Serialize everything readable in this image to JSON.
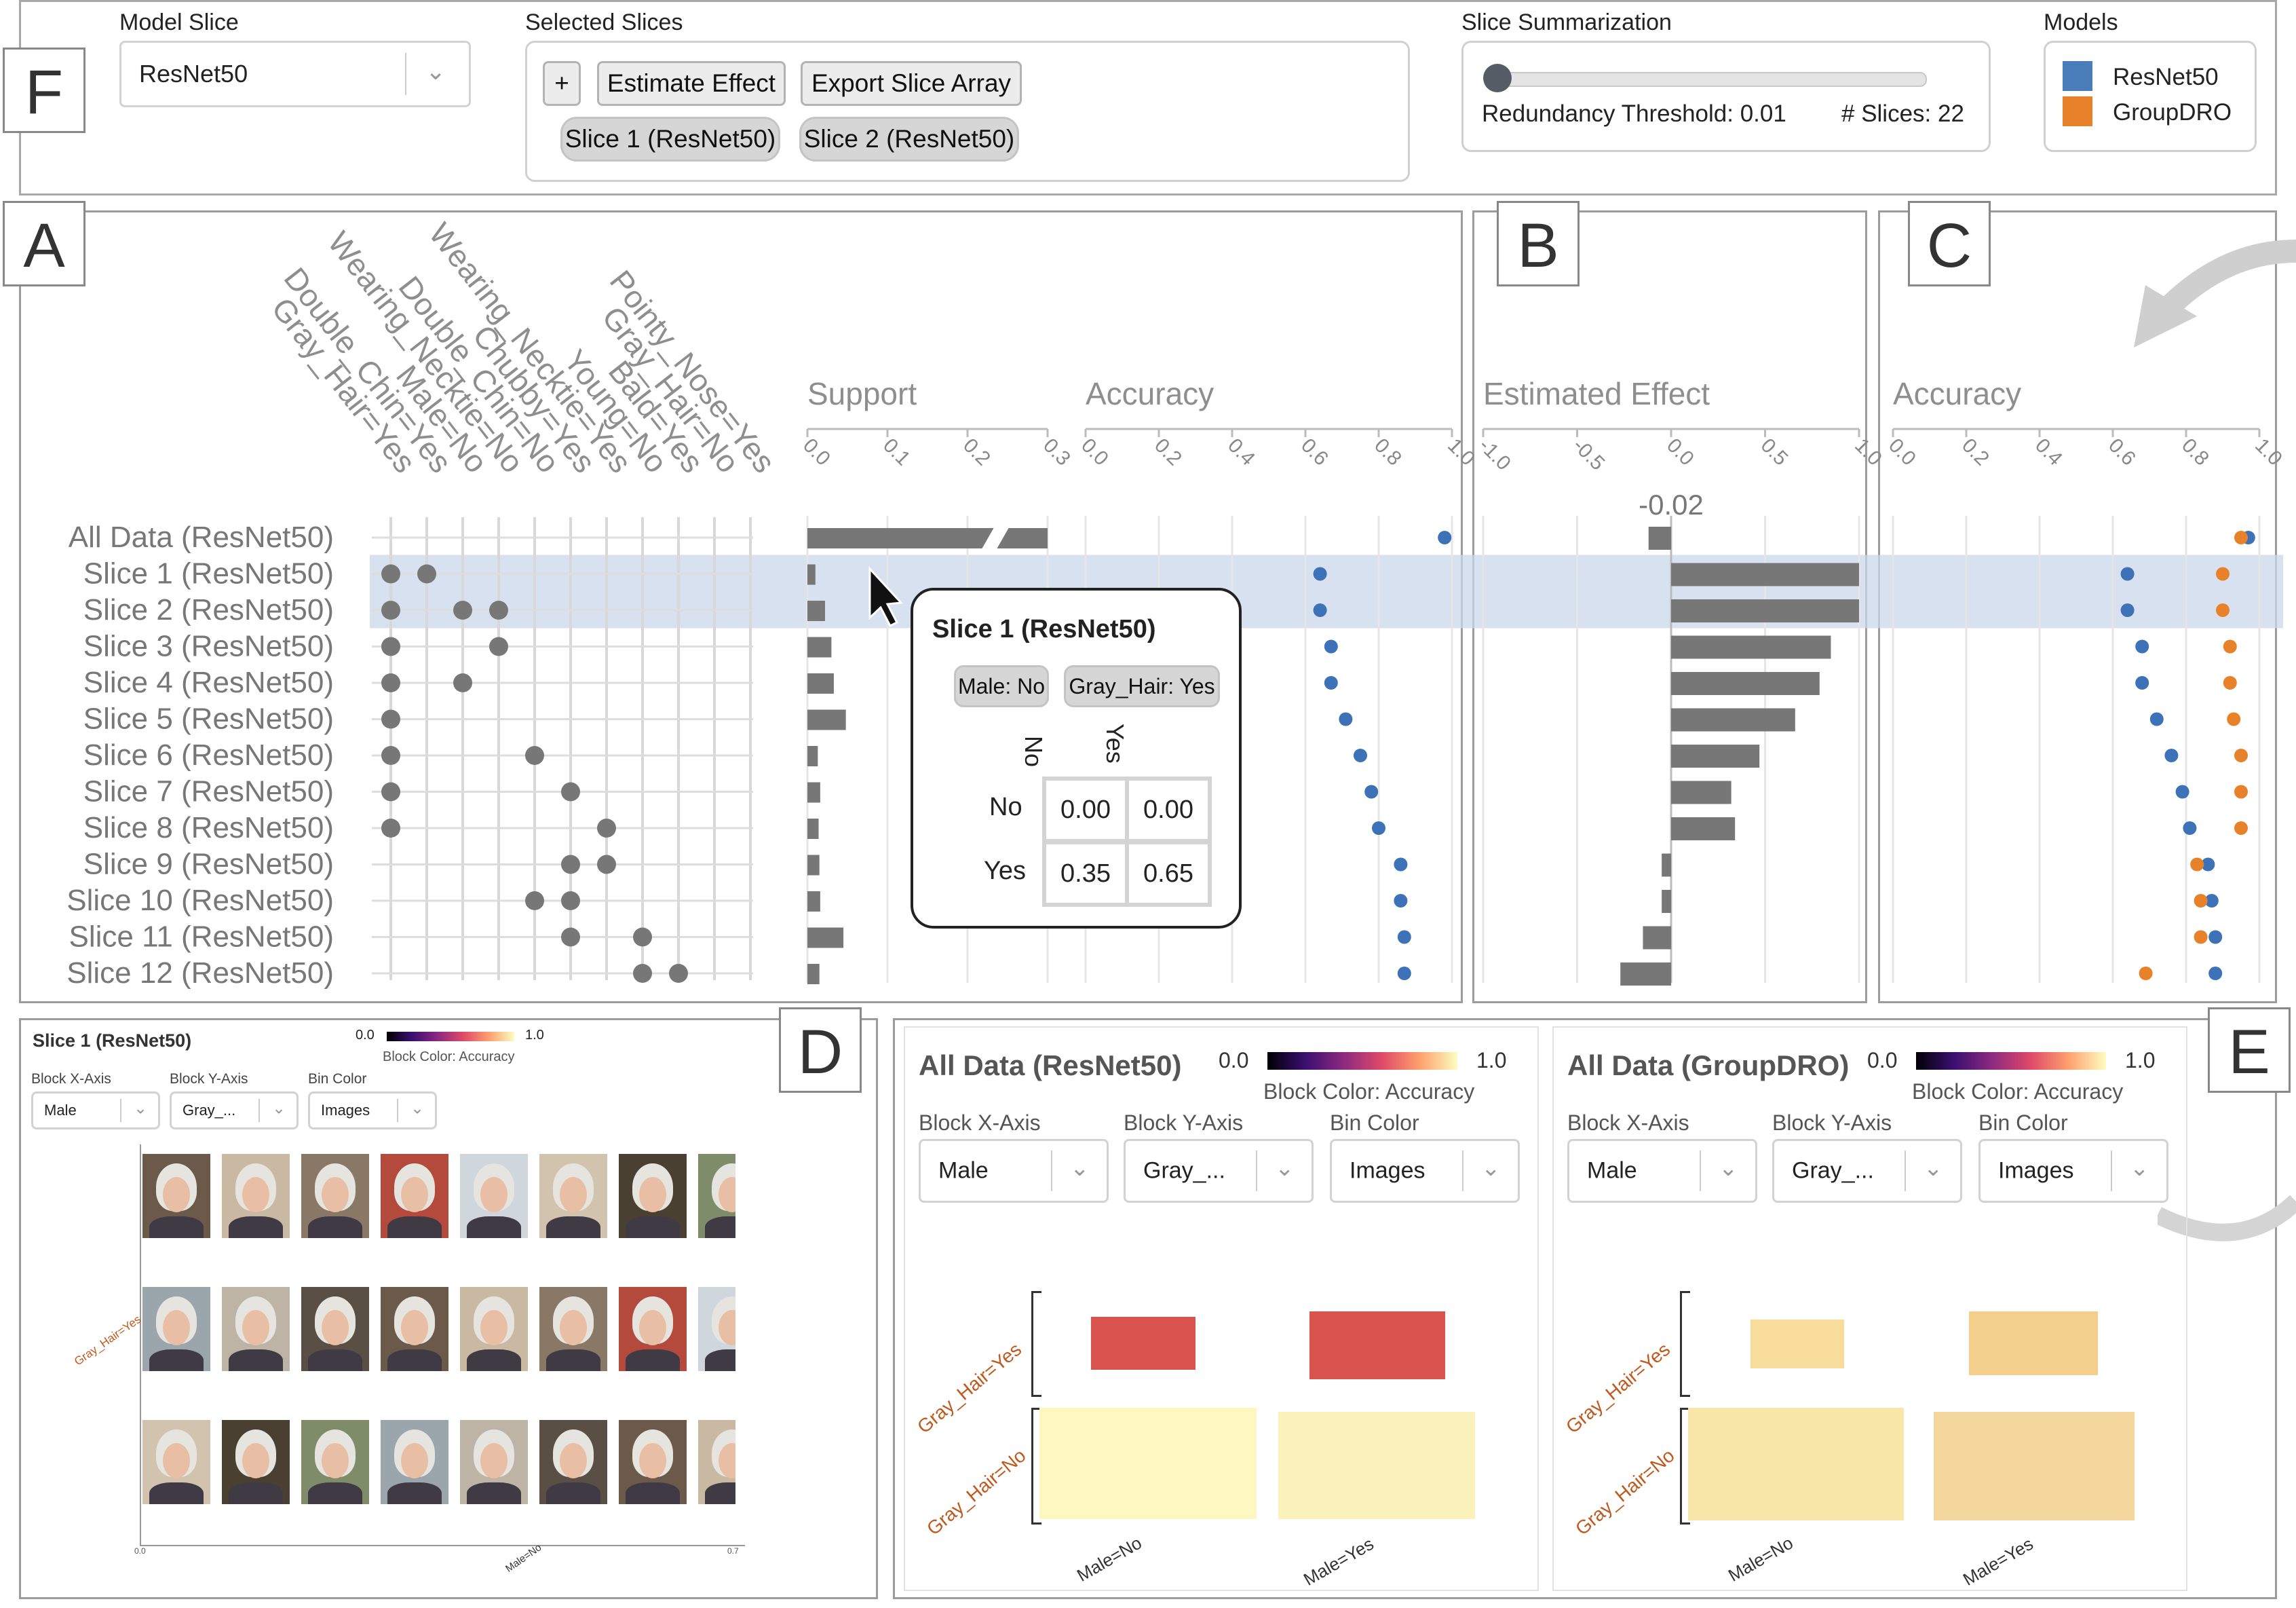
{
  "panel_letters": [
    "F",
    "A",
    "B",
    "C",
    "D",
    "E"
  ],
  "top": {
    "model_slice": {
      "label": "Model Slice",
      "value": "ResNet50"
    },
    "selected_slices": {
      "label": "Selected Slices",
      "add_label": "+",
      "estimate_label": "Estimate Effect",
      "export_label": "Export Slice Array",
      "chips": [
        "Slice 1 (ResNet50)",
        "Slice 2 (ResNet50)"
      ]
    },
    "summarization": {
      "label": "Slice Summarization",
      "threshold_text": "Redundancy Threshold: 0.01",
      "slices_text": "# Slices: 22",
      "threshold": 0.01
    },
    "models": {
      "label": "Models",
      "items": [
        {
          "name": "ResNet50",
          "color": "#4a7ebb"
        },
        {
          "name": "GroupDRO",
          "color": "#e8822a"
        }
      ]
    }
  },
  "matrix": {
    "features": [
      "Gray_Hair=Yes",
      "Double_Chin=Yes",
      "Male=No",
      "Wearing_Necktie=No",
      "Double_Chin=No",
      "Chubby=Yes",
      "Wearing_Necktie=Yes",
      "Young=No",
      "Bald=Yes",
      "Gray_Hair=No",
      "Pointy_Nose=Yes"
    ],
    "rows": [
      {
        "label": "All Data (ResNet50)",
        "dots": []
      },
      {
        "label": "Slice 1 (ResNet50)",
        "dots": [
          0,
          1
        ]
      },
      {
        "label": "Slice 2 (ResNet50)",
        "dots": [
          0,
          2,
          3
        ]
      },
      {
        "label": "Slice 3 (ResNet50)",
        "dots": [
          0,
          3
        ]
      },
      {
        "label": "Slice 4 (ResNet50)",
        "dots": [
          0,
          2
        ]
      },
      {
        "label": "Slice 5 (ResNet50)",
        "dots": [
          0
        ]
      },
      {
        "label": "Slice 6 (ResNet50)",
        "dots": [
          0,
          4
        ]
      },
      {
        "label": "Slice 7 (ResNet50)",
        "dots": [
          0,
          5
        ]
      },
      {
        "label": "Slice 8 (ResNet50)",
        "dots": [
          0,
          6
        ]
      },
      {
        "label": "Slice 9 (ResNet50)",
        "dots": [
          5,
          6
        ]
      },
      {
        "label": "Slice 10 (ResNet50)",
        "dots": [
          4,
          5
        ]
      },
      {
        "label": "Slice 11 (ResNet50)",
        "dots": [
          5,
          7
        ]
      },
      {
        "label": "Slice 12 (ResNet50)",
        "dots": [
          7,
          8
        ]
      }
    ]
  },
  "support": {
    "title": "Support",
    "ticks": [
      "0.0",
      "0.1",
      "0.2",
      "0.3"
    ],
    "max": 0.3,
    "values": [
      0.3,
      0.01,
      0.022,
      0.03,
      0.033,
      0.048,
      0.013,
      0.016,
      0.014,
      0.015,
      0.016,
      0.045,
      0.015
    ]
  },
  "accuracy_a": {
    "title": "Accuracy",
    "ticks": [
      "0.0",
      "0.2",
      "0.4",
      "0.6",
      "0.8",
      "1.0"
    ],
    "values": [
      0.98,
      0.64,
      0.64,
      0.67,
      0.67,
      0.71,
      0.75,
      0.78,
      0.8,
      0.86,
      0.86,
      0.87,
      0.87
    ]
  },
  "effect": {
    "title": "Estimated Effect",
    "ticks": [
      "-1.0",
      "-0.5",
      "0.0",
      "0.5",
      "1.0"
    ],
    "label": "-0.02",
    "values": [
      -0.12,
      1.0,
      1.0,
      0.85,
      0.79,
      0.66,
      0.47,
      0.32,
      0.34,
      -0.05,
      -0.05,
      -0.15,
      -0.27
    ]
  },
  "accuracy_c": {
    "title": "Accuracy",
    "ticks": [
      "0.0",
      "0.2",
      "0.4",
      "0.6",
      "0.8",
      "1.0"
    ],
    "resnet": [
      0.97,
      0.64,
      0.64,
      0.68,
      0.68,
      0.72,
      0.76,
      0.79,
      0.81,
      0.86,
      0.87,
      0.88,
      0.88
    ],
    "groupdro": [
      0.95,
      0.9,
      0.9,
      0.92,
      0.92,
      0.93,
      0.95,
      0.95,
      0.95,
      0.83,
      0.84,
      0.84,
      0.69
    ]
  },
  "tooltip": {
    "title": "Slice 1 (ResNet50)",
    "chips": [
      "Male: No",
      "Gray_Hair: Yes"
    ],
    "col_labels": [
      "No",
      "Yes"
    ],
    "row_labels": [
      "No",
      "Yes"
    ],
    "cells": [
      [
        "0.00",
        "0.00"
      ],
      [
        "0.35",
        "0.65"
      ]
    ]
  },
  "panel_d": {
    "title": "Slice 1 (ResNet50)",
    "legend": {
      "min": "0.0",
      "max": "1.0",
      "caption": "Block Color: Accuracy"
    },
    "controls": [
      {
        "label": "Block X-Axis",
        "value": "Male"
      },
      {
        "label": "Block Y-Axis",
        "value": "Gray_..."
      },
      {
        "label": "Bin Color",
        "value": "Images"
      }
    ],
    "y_label": "Gray_Hair=Yes",
    "x_label": "Male=No",
    "x_ticks": [
      "0.0",
      "0.7"
    ]
  },
  "panel_e": [
    {
      "title": "All Data (ResNet50)",
      "legend": {
        "min": "0.0",
        "max": "1.0",
        "caption": "Block Color: Accuracy"
      },
      "controls": [
        {
          "label": "Block X-Axis",
          "value": "Male"
        },
        {
          "label": "Block Y-Axis",
          "value": "Gray_..."
        },
        {
          "label": "Bin Color",
          "value": "Images"
        }
      ],
      "y_labels": [
        "Gray_Hair=Yes",
        "Gray_Hair=No"
      ],
      "x_labels": [
        "Male=No",
        "Male=Yes"
      ],
      "blocks": {
        "top_left": "#d9534f",
        "top_right": "#d9534f",
        "bot_left": "#fdf7c0",
        "bot_right": "#fbf1ba"
      }
    },
    {
      "title": "All Data (GroupDRO)",
      "legend": {
        "min": "0.0",
        "max": "1.0",
        "caption": "Block Color: Accuracy"
      },
      "controls": [
        {
          "label": "Block X-Axis",
          "value": "Male"
        },
        {
          "label": "Block Y-Axis",
          "value": "Gray_..."
        },
        {
          "label": "Bin Color",
          "value": "Images"
        }
      ],
      "y_labels": [
        "Gray_Hair=Yes",
        "Gray_Hair=No"
      ],
      "x_labels": [
        "Male=No",
        "Male=Yes"
      ],
      "blocks": {
        "top_left": "#f7dc9b",
        "top_right": "#f3cf8e",
        "bot_left": "#f9e7a9",
        "bot_right": "#f4d79c"
      }
    }
  ]
}
